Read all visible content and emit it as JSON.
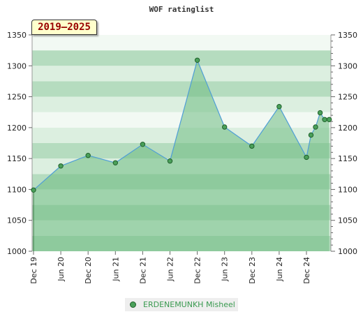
{
  "chart_data": {
    "type": "area",
    "title": "WOF ratinglist",
    "period_label": "2019–2025",
    "x_tick_labels": [
      "Dec 19",
      "Jun 20",
      "Dec 20",
      "Jun 21",
      "Dec 21",
      "Jun 22",
      "Dec 22",
      "Jun 23",
      "Dec 23",
      "Jun 24",
      "Dec 24"
    ],
    "y_ticks": [
      1000,
      1050,
      1100,
      1150,
      1200,
      1250,
      1300,
      1350
    ],
    "ylim": [
      1000,
      1350
    ],
    "series": [
      {
        "name": "ERDENEMUNKH Misheel",
        "points": [
          {
            "x": "2019-12",
            "y": 1099
          },
          {
            "x": "2020-06",
            "y": 1138
          },
          {
            "x": "2020-12",
            "y": 1155
          },
          {
            "x": "2021-06",
            "y": 1143
          },
          {
            "x": "2021-12",
            "y": 1173
          },
          {
            "x": "2022-06",
            "y": 1146
          },
          {
            "x": "2022-12",
            "y": 1309
          },
          {
            "x": "2023-06",
            "y": 1201
          },
          {
            "x": "2023-12",
            "y": 1170
          },
          {
            "x": "2024-06",
            "y": 1234
          },
          {
            "x": "2024-12",
            "y": 1152
          },
          {
            "x": "2025-01",
            "y": 1188
          },
          {
            "x": "2025-02",
            "y": 1201
          },
          {
            "x": "2025-03",
            "y": 1224
          },
          {
            "x": "2025-04",
            "y": 1213
          },
          {
            "x": "2025-05",
            "y": 1213
          }
        ]
      }
    ],
    "legend": "bottom-center",
    "colors": {
      "area_fill": "#6dbb82",
      "line": "#4f9ed6",
      "marker_fill": "#4aa05a",
      "marker_stroke": "#1f5f2a",
      "band_dark": "#b5dcbf",
      "band_light": "#dcefe0",
      "band_lightest": "#f2f9f3",
      "legend_text": "#3a9a50",
      "period_text": "#990000"
    }
  }
}
